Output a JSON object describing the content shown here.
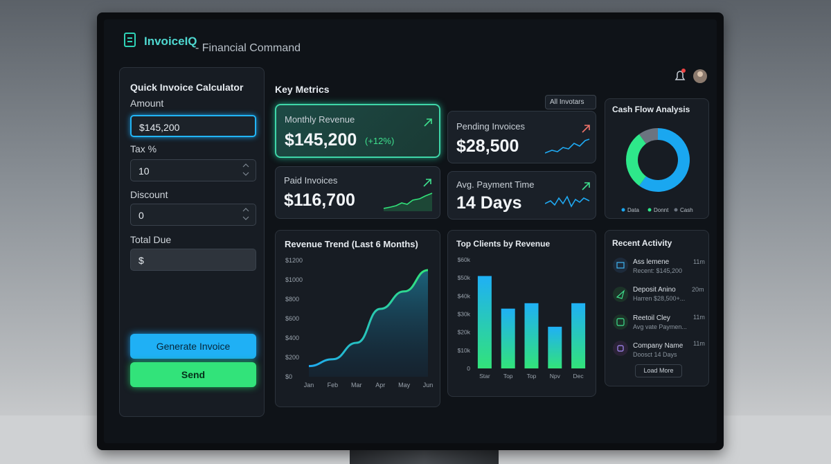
{
  "header": {
    "brand": "InvoiceIQ",
    "subtitle": "- Financial Command"
  },
  "calculator": {
    "title": "Quick Invoice Calculator",
    "fields": [
      {
        "label": "Amount",
        "value": "$145,200"
      },
      {
        "label": "Tax %",
        "value": "10"
      },
      {
        "label": "Discount",
        "value": "0"
      },
      {
        "label": "Total Due",
        "value": "$"
      }
    ],
    "buttons": [
      "Generate Invoice",
      "Send"
    ]
  },
  "metrics": {
    "title": "Key Metrics",
    "filter": "All Invotars",
    "cards": [
      {
        "label": "Monthly Revenue",
        "value": "$145,200",
        "change": "(+12%)"
      },
      {
        "label": "Pending Invoices",
        "value": "$28,500"
      },
      {
        "label": "Paid Invoices",
        "value": "$116,700"
      },
      {
        "label": "Avg. Payment Time",
        "value": "14 Days"
      }
    ]
  },
  "cash_flow": {
    "type": "pie",
    "title": "Cash Flow Analysis",
    "series": [
      {
        "name": "Data",
        "color": "#1aa7f0",
        "values": [
          60
        ]
      },
      {
        "name": "Donnt",
        "color": "#2ee88a",
        "values": [
          30
        ]
      },
      {
        "name": "Cash",
        "color": "#6b7480",
        "values": [
          10
        ]
      }
    ]
  },
  "revenue_trend": {
    "type": "line",
    "title": "Revenue Trend (Last 6 Months)",
    "categories": [
      "Jan",
      "Feb",
      "Mar",
      "Apr",
      "May",
      "Jun"
    ],
    "values": [
      110,
      180,
      350,
      700,
      880,
      1100
    ],
    "color": "#22d3c5",
    "ylim": [
      0,
      1200
    ],
    "yticks": [
      {
        "value": 0,
        "label": "$0"
      },
      {
        "value": 200,
        "label": "$200"
      },
      {
        "value": 400,
        "label": "$400"
      },
      {
        "value": 600,
        "label": "$600"
      },
      {
        "value": 800,
        "label": "$800"
      },
      {
        "value": 1000,
        "label": "$1000"
      },
      {
        "value": 1200,
        "label": "$1200"
      }
    ]
  },
  "top_clients": {
    "type": "bar",
    "title": "Top Clients by Revenue",
    "categories": [
      "Star",
      "Top",
      "Top",
      "Npv",
      "Dec"
    ],
    "values": [
      51,
      33,
      36,
      23,
      36
    ],
    "ylim": [
      0,
      60
    ],
    "yticks": [
      0,
      {
        "value": 10,
        "label": "$10k"
      },
      {
        "value": 20,
        "label": "$20k"
      },
      {
        "value": 30,
        "label": "$30k"
      },
      {
        "value": 40,
        "label": "$40k"
      },
      {
        "value": 50,
        "label": "$50k"
      },
      {
        "value": 60,
        "label": "$60k"
      }
    ]
  },
  "activity": {
    "title": "Recent Activity",
    "items": [
      {
        "title": "Ass lemene",
        "detail": "Recent: $145,200",
        "time": "11m"
      },
      {
        "title": "Deposit Anino",
        "detail": "Harren $28,500+...",
        "time": "20m"
      },
      {
        "title": "Reetoil Cley",
        "detail": "Avg vate Paymen...",
        "time": "11m"
      },
      {
        "title": "Company Name",
        "detail": "Doosct 14 Days",
        "time": "11m"
      }
    ],
    "button": "Load More"
  }
}
